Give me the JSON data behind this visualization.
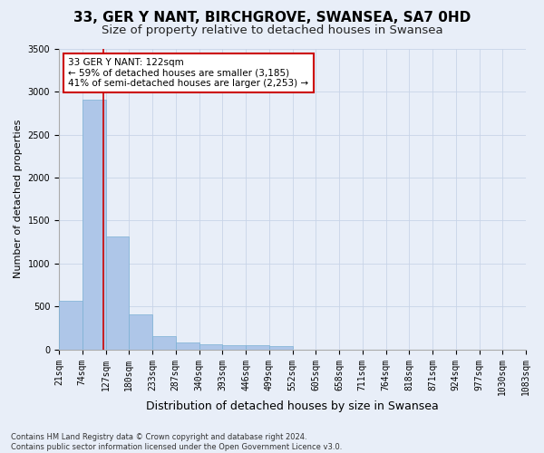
{
  "title": "33, GER Y NANT, BIRCHGROVE, SWANSEA, SA7 0HD",
  "subtitle": "Size of property relative to detached houses in Swansea",
  "xlabel": "Distribution of detached houses by size in Swansea",
  "ylabel": "Number of detached properties",
  "footer_line1": "Contains HM Land Registry data © Crown copyright and database right 2024.",
  "footer_line2": "Contains public sector information licensed under the Open Government Licence v3.0.",
  "bins": [
    21,
    74,
    127,
    180,
    233,
    287,
    340,
    393,
    446,
    499,
    552,
    605,
    658,
    711,
    764,
    818,
    871,
    924,
    977,
    1030,
    1083
  ],
  "counts": [
    570,
    2910,
    1320,
    410,
    150,
    85,
    60,
    50,
    45,
    40,
    0,
    0,
    0,
    0,
    0,
    0,
    0,
    0,
    0,
    0
  ],
  "bar_color": "#aec6e8",
  "bar_edge_color": "#7ab0d4",
  "grid_color": "#c8d4e8",
  "background_color": "#e8eef8",
  "property_value": 122,
  "property_bin_index": 1,
  "vline_color": "#cc0000",
  "annotation_text": "33 GER Y NANT: 122sqm\n← 59% of detached houses are smaller (3,185)\n41% of semi-detached houses are larger (2,253) →",
  "annotation_box_color": "#ffffff",
  "annotation_box_edge": "#cc0000",
  "ylim": [
    0,
    3500
  ],
  "yticks": [
    0,
    500,
    1000,
    1500,
    2000,
    2500,
    3000,
    3500
  ],
  "title_fontsize": 11,
  "subtitle_fontsize": 9.5,
  "xlabel_fontsize": 9,
  "ylabel_fontsize": 8,
  "tick_fontsize": 7,
  "annotation_fontsize": 7.5
}
